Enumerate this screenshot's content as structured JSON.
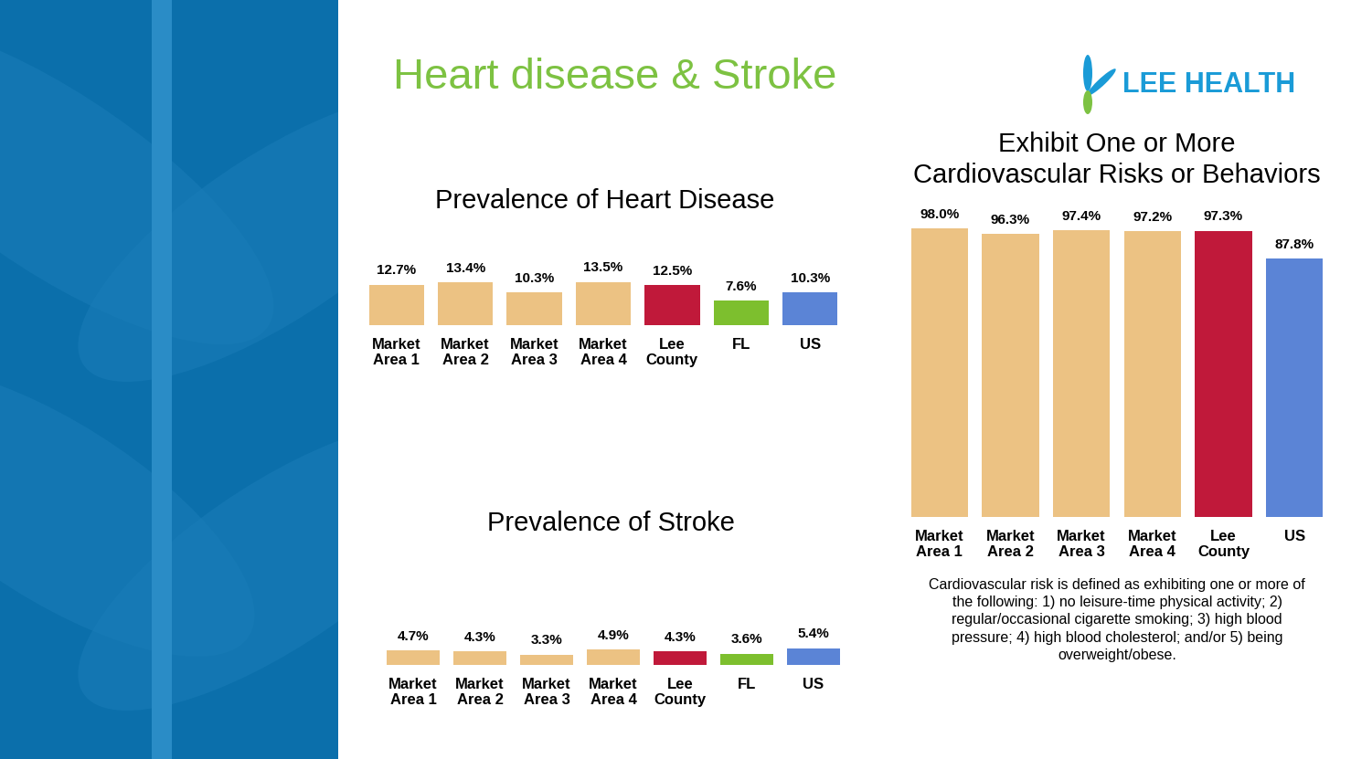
{
  "title": "Heart disease & Stroke",
  "logo": "LEE HEALTH",
  "chart_data": [
    {
      "type": "bar",
      "title": "Prevalence of Heart Disease",
      "categories": [
        "Market Area 1",
        "Market Area 2",
        "Market Area 3",
        "Market Area 4",
        "Lee County",
        "FL",
        "US"
      ],
      "values": [
        12.7,
        13.4,
        10.3,
        13.5,
        12.5,
        7.6,
        10.3
      ],
      "value_labels": [
        "12.7%",
        "13.4%",
        "10.3%",
        "13.5%",
        "12.5%",
        "7.6%",
        "10.3%"
      ],
      "colors": [
        "#ecc283",
        "#ecc283",
        "#ecc283",
        "#ecc283",
        "#c0193a",
        "#7dbf2e",
        "#5b84d6"
      ],
      "ylim": [
        0,
        15
      ],
      "data_labels": true,
      "tick_labels": "x",
      "grid": false
    },
    {
      "type": "bar",
      "title": "Prevalence of Stroke",
      "categories": [
        "Market Area 1",
        "Market Area 2",
        "Market Area 3",
        "Market Area 4",
        "Lee County",
        "FL",
        "US"
      ],
      "values": [
        4.7,
        4.3,
        3.3,
        4.9,
        4.3,
        3.6,
        5.4
      ],
      "value_labels": [
        "4.7%",
        "4.3%",
        "3.3%",
        "4.9%",
        "4.3%",
        "3.6%",
        "5.4%"
      ],
      "colors": [
        "#ecc283",
        "#ecc283",
        "#ecc283",
        "#ecc283",
        "#c0193a",
        "#7dbf2e",
        "#5b84d6"
      ],
      "ylim": [
        0,
        15
      ],
      "data_labels": true,
      "tick_labels": "x",
      "grid": false
    },
    {
      "type": "bar",
      "title": "Exhibit One or More Cardiovascular Risks or Behaviors",
      "categories": [
        "Market Area 1",
        "Market Area 2",
        "Market Area 3",
        "Market Area 4",
        "Lee County",
        "US"
      ],
      "values": [
        98.0,
        96.3,
        97.4,
        97.2,
        97.3,
        87.8
      ],
      "value_labels": [
        "98.0%",
        "96.3%",
        "97.4%",
        "97.2%",
        "97.3%",
        "87.8%"
      ],
      "colors": [
        "#ecc283",
        "#ecc283",
        "#ecc283",
        "#ecc283",
        "#c0193a",
        "#5b84d6"
      ],
      "ylim": [
        0,
        100
      ],
      "data_labels": true,
      "tick_labels": "x",
      "grid": false,
      "annotation": "Cardiovascular risk is defined as exhibiting one or more of the following: 1) no leisure-time physical activity; 2) regular/occasional cigarette smoking; 3) high blood pressure; 4) high blood cholesterol; and/or 5) being overweight/obese."
    }
  ]
}
